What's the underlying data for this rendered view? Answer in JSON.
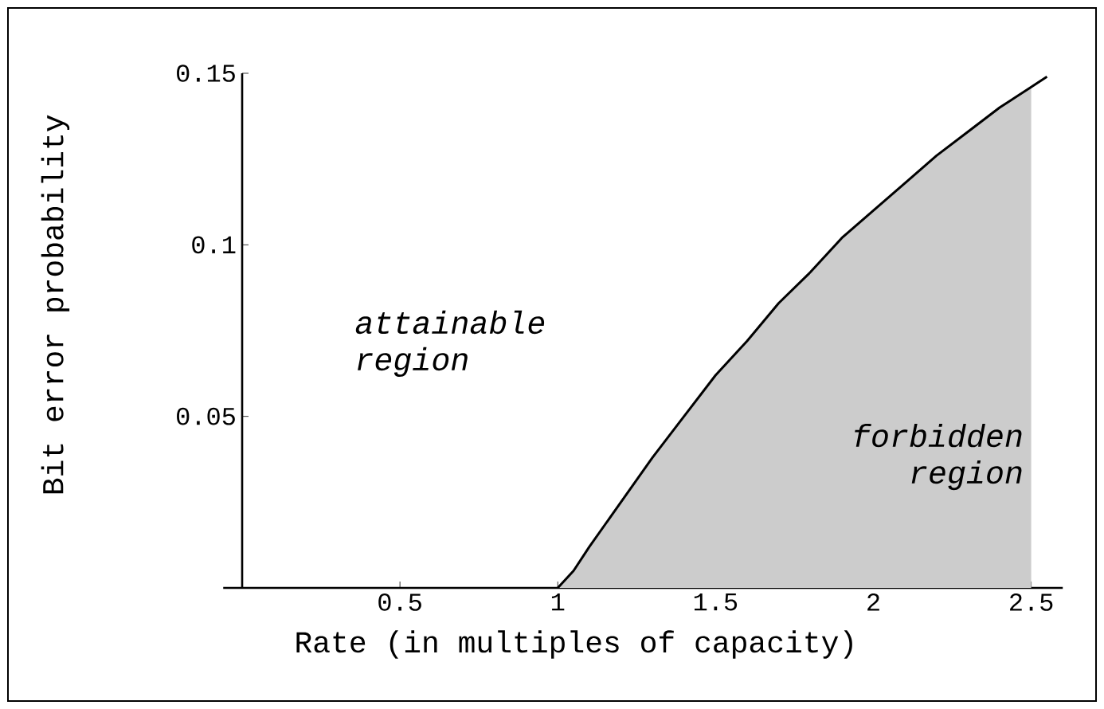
{
  "chart_data": {
    "type": "line",
    "xlabel": "Rate (in multiples of capacity)",
    "ylabel": "Bit error probability",
    "xlim": [
      -0.06,
      2.6
    ],
    "ylim": [
      0,
      0.15
    ],
    "xticks": [
      0.5,
      1,
      1.5,
      2,
      2.5
    ],
    "yticks": [
      0.05,
      0.1,
      0.15
    ],
    "series": [
      {
        "type": "area",
        "color": "#cccccc",
        "x": [
          1,
          1.05,
          1.1,
          1.2,
          1.3,
          1.4,
          1.5,
          1.6,
          1.7,
          1.8,
          1.9,
          2.0,
          2.1,
          2.2,
          2.3,
          2.4,
          2.5
        ],
        "values": [
          0,
          0.005,
          0.012,
          0.025,
          0.038,
          0.05,
          0.062,
          0.072,
          0.083,
          0.092,
          0.102,
          0.11,
          0.118,
          0.126,
          0.133,
          0.14,
          0.146
        ]
      },
      {
        "type": "line",
        "color": "#000000",
        "x": [
          1,
          1.05,
          1.1,
          1.2,
          1.3,
          1.4,
          1.5,
          1.6,
          1.7,
          1.8,
          1.9,
          2.0,
          2.1,
          2.2,
          2.3,
          2.4,
          2.5,
          2.55
        ],
        "values": [
          0,
          0.005,
          0.012,
          0.025,
          0.038,
          0.05,
          0.062,
          0.072,
          0.083,
          0.092,
          0.102,
          0.11,
          0.118,
          0.126,
          0.133,
          0.14,
          0.146,
          0.149
        ]
      }
    ],
    "annotations": [
      "attainable region",
      "forbidden region"
    ]
  }
}
